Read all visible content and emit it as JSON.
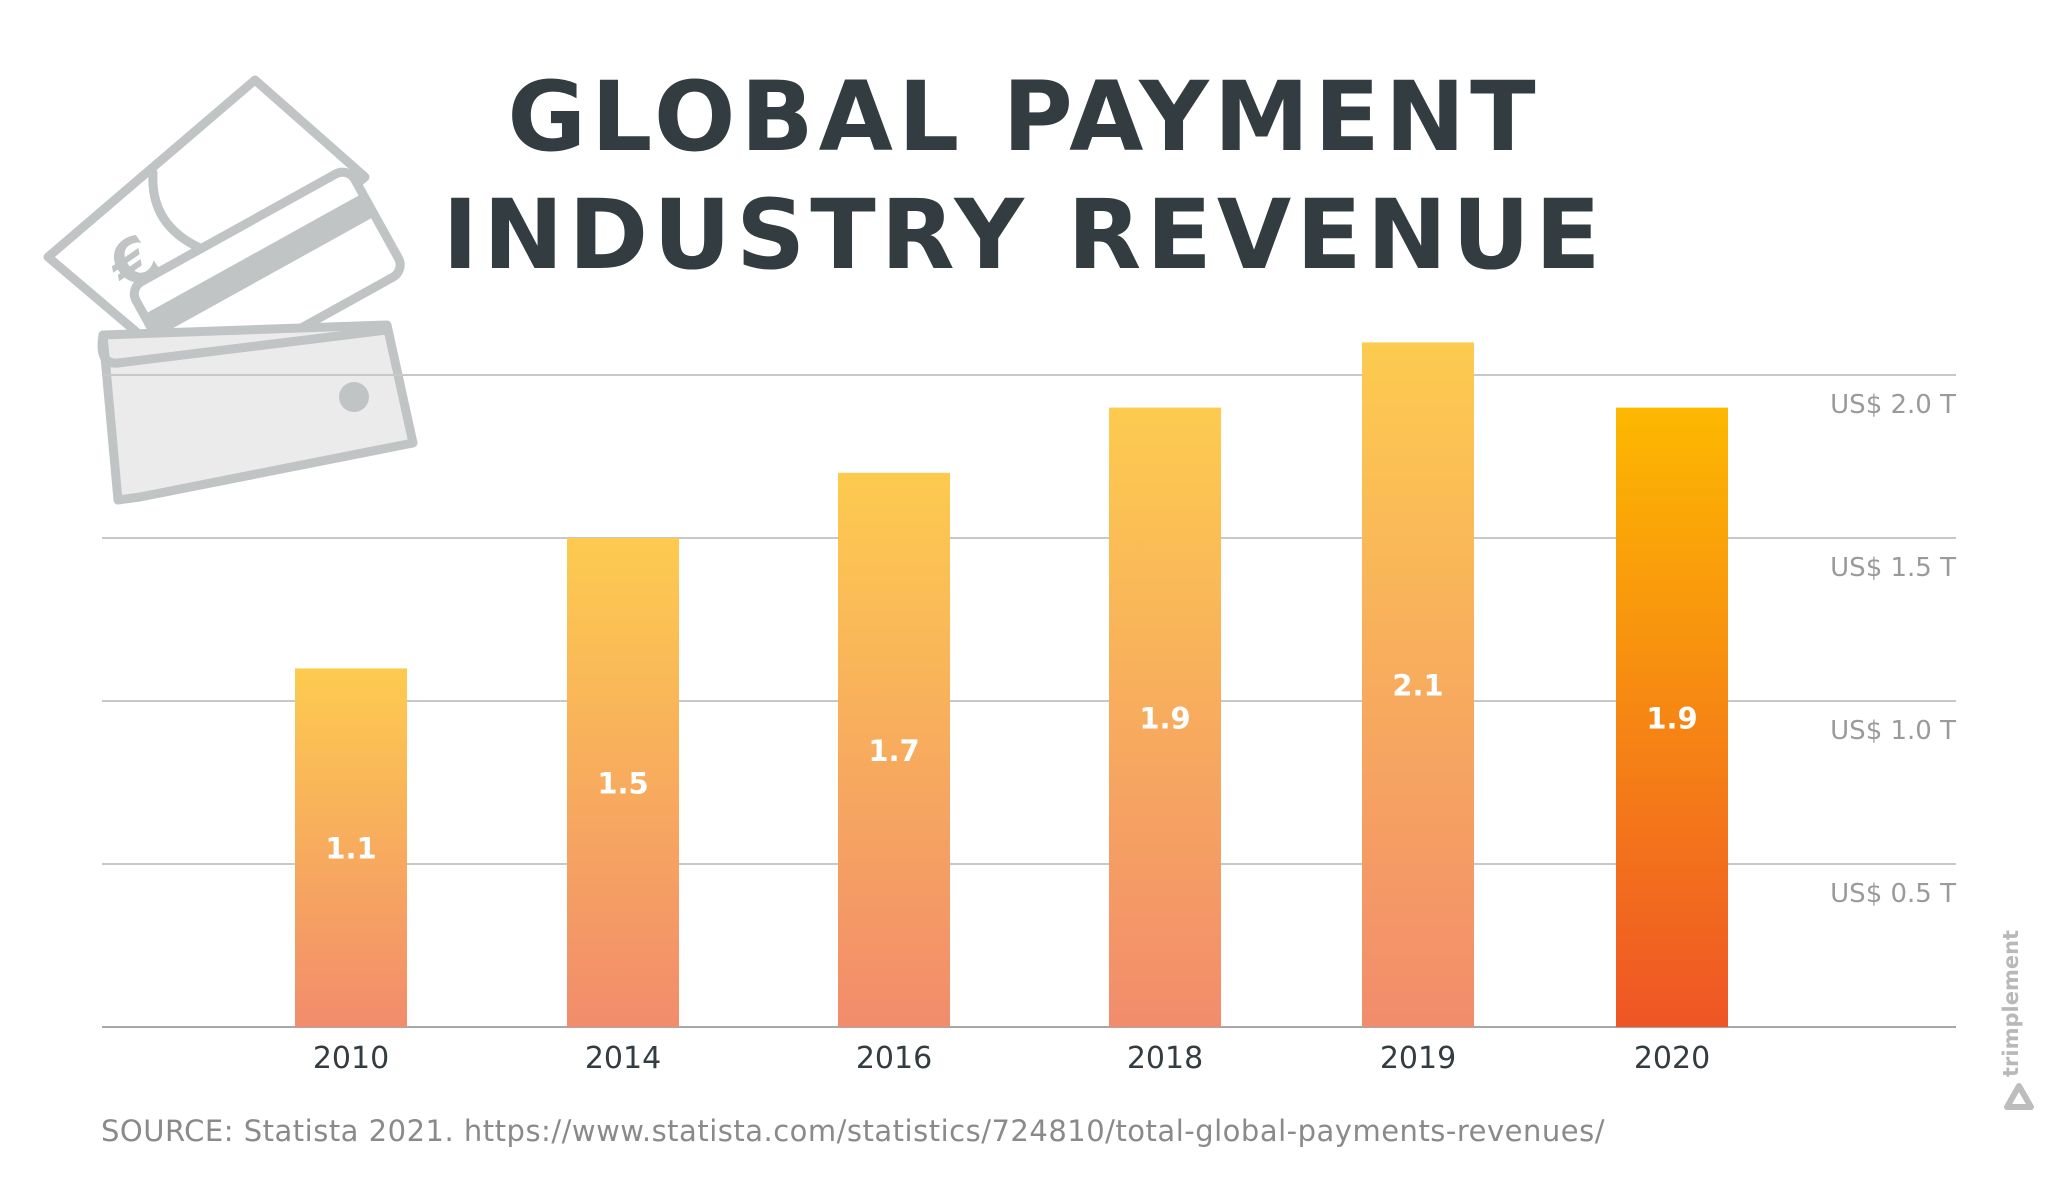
{
  "chart_data": {
    "type": "bar",
    "title": "GLOBAL PAYMENT INDUSTRY REVENUE",
    "title_lines": [
      "GLOBAL PAYMENT",
      "INDUSTRY REVENUE"
    ],
    "categories": [
      "2010",
      "2014",
      "2016",
      "2018",
      "2019",
      "2020"
    ],
    "values": [
      1.1,
      1.5,
      1.7,
      1.9,
      2.1,
      1.9
    ],
    "value_labels": [
      "1.1",
      "1.5",
      "1.7",
      "1.9",
      "2.1",
      "1.9"
    ],
    "ylim": [
      0,
      2.0
    ],
    "yticks": [
      0.5,
      1.0,
      1.5,
      2.0
    ],
    "ytick_labels": [
      "US$ 0.5 T",
      "US$ 1.0 T",
      "US$ 1.5 T",
      "US$ 2.0 T"
    ],
    "y_axis_position": "right",
    "grid": true,
    "xlabel": "",
    "ylabel": "",
    "colors": {
      "bar_top": "#fdcb4f",
      "bar_bottom": "#f28c6c",
      "highlight_top": "#fdb800",
      "highlight_bottom": "#ef5526",
      "highlight_category": "2020"
    }
  },
  "source": "SOURCE: Statista 2021. https://www.statista.com/statistics/724810/total-global-payments-revenues/",
  "logo": {
    "text": "trimplement"
  },
  "decoration": {
    "icon": "wallet-with-card-and-euro-banknote-icon"
  }
}
